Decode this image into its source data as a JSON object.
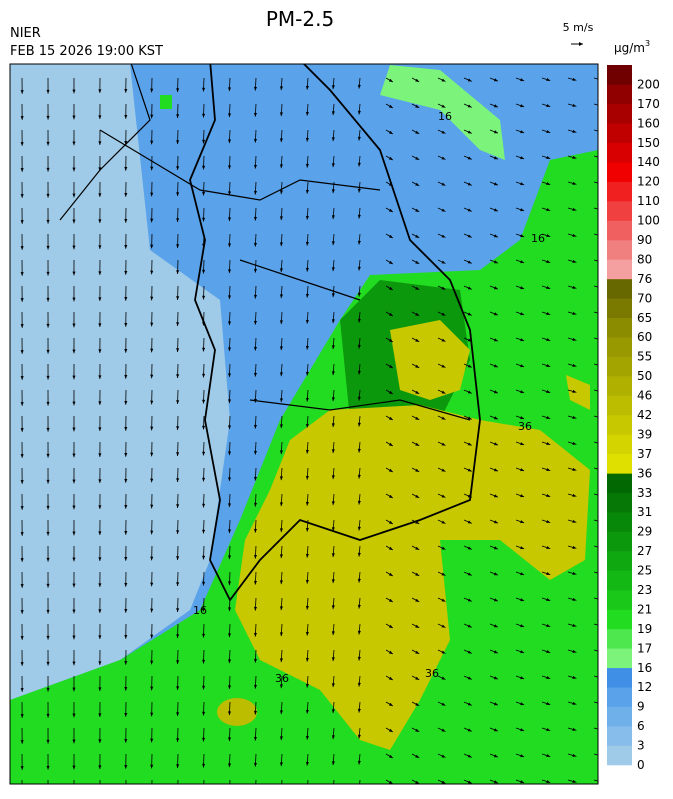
{
  "header": {
    "title": "PM-2.5",
    "agency": "NIER",
    "timestamp": "FEB 15 2026 19:00 KST",
    "wind_scale": "5 m/s",
    "unit_base": "µg/m",
    "unit_exp": "3"
  },
  "legend": {
    "labels": [
      "0",
      "3",
      "6",
      "9",
      "12",
      "16",
      "17",
      "19",
      "21",
      "23",
      "25",
      "27",
      "29",
      "31",
      "33",
      "36",
      "37",
      "39",
      "42",
      "46",
      "50",
      "55",
      "60",
      "65",
      "70",
      "76",
      "80",
      "90",
      "100",
      "110",
      "120",
      "140",
      "150",
      "160",
      "170",
      "200"
    ],
    "colors": [
      "#9fcbe8",
      "#86bdea",
      "#6fb0ea",
      "#5aa2ea",
      "#3f8fe6",
      "#7cf47c",
      "#4ee84e",
      "#22dc22",
      "#19c819",
      "#14b814",
      "#10a810",
      "#0c980c",
      "#088808",
      "#057805",
      "#026802",
      "#e0e000",
      "#d4d400",
      "#c8c800",
      "#bcbc00",
      "#b0b000",
      "#a4a400",
      "#989800",
      "#8c8c00",
      "#7a7a00",
      "#686800",
      "#f4a0a0",
      "#f08080",
      "#f06060",
      "#f04040",
      "#f02020",
      "#f00000",
      "#d80000",
      "#c00000",
      "#a80000",
      "#900000",
      "#700000"
    ]
  },
  "map": {
    "contour_labels": [
      "16",
      "16",
      "36",
      "36",
      "36",
      "16"
    ]
  }
}
